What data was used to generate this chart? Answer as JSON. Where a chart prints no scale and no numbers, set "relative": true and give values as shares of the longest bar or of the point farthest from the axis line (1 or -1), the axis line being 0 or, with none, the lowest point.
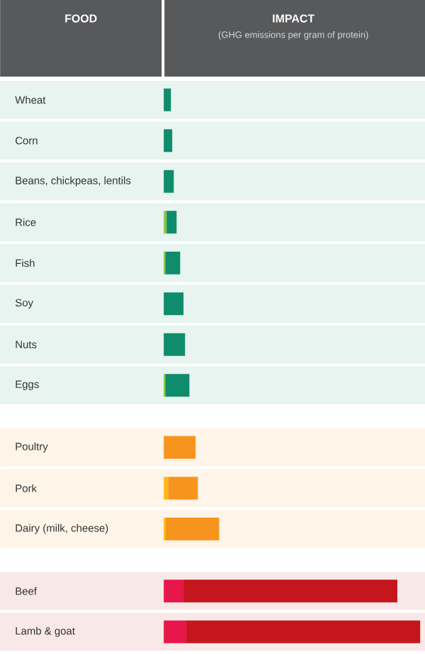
{
  "chart_data": {
    "type": "bar",
    "orientation": "horizontal",
    "stacked": true,
    "relative": true,
    "tick_labels": "y",
    "title": "IMPACT",
    "subtitle": "(GHG emissions per gram of protein)",
    "ylabel": "FOOD",
    "categories": [
      "Wheat",
      "Corn",
      "Beans, chickpeas, lentils",
      "Rice",
      "Fish",
      "Soy",
      "Nuts",
      "Eggs",
      "Poultry",
      "Pork",
      "Dairy (milk, cheese)",
      "Beef",
      "Lamb & goat"
    ],
    "series": [
      {
        "colors": [
          "#8cc63f",
          "#8cc63f",
          "#8cc63f",
          "#8cc63f",
          "#8cc63f",
          "#8cc63f",
          "#8cc63f",
          "#8cc63f",
          "#fdb913",
          "#fdb913",
          "#fdb913",
          "#e8174b",
          "#e8174b"
        ],
        "values": [
          0,
          0,
          0,
          0.011,
          0.006,
          0,
          0,
          0.006,
          0,
          0.017,
          0.006,
          0.077,
          0.088
        ]
      },
      {
        "colors": [
          "#0e8c6c",
          "#0e8c6c",
          "#0e8c6c",
          "#0e8c6c",
          "#0e8c6c",
          "#0e8c6c",
          "#0e8c6c",
          "#0e8c6c",
          "#f7941d",
          "#f7941d",
          "#f7941d",
          "#c4161c",
          "#c4161c"
        ],
        "values": [
          0.028,
          0.033,
          0.039,
          0.039,
          0.058,
          0.077,
          0.083,
          0.094,
          0.124,
          0.116,
          0.21,
          0.834,
          0.912
        ]
      }
    ]
  }
}
